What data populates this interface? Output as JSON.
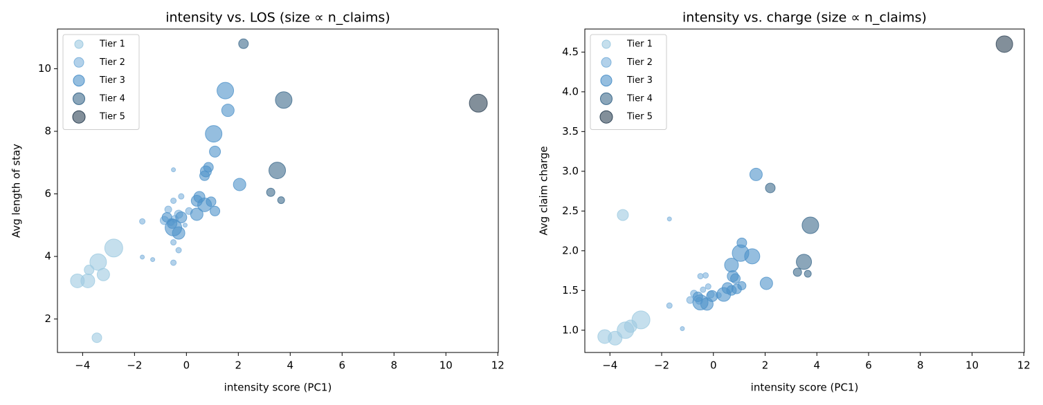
{
  "chart_data": [
    {
      "type": "scatter",
      "title": "intensity vs. LOS (size ∝ n_claims)",
      "xlabel": "intensity score (PC1)",
      "ylabel": "Avg length of stay",
      "legend": "upper left",
      "xlim": [
        -4.97,
        12.02
      ],
      "ylim": [
        0.93,
        11.27
      ],
      "xticks": [
        {
          "value": -4,
          "label": "−4"
        },
        {
          "value": -2,
          "label": "−2"
        },
        0,
        2,
        4,
        6,
        8,
        10,
        12
      ],
      "yticks": [
        2,
        4,
        6,
        8,
        10
      ],
      "series": [
        {
          "name": "Tier 1",
          "color": "#9ecae1",
          "x": [
            -4.2,
            -3.8,
            -3.4,
            -3.2,
            -2.8,
            -3.75,
            -3.45
          ],
          "values": [
            3.22,
            3.22,
            3.82,
            3.42,
            4.27,
            3.57,
            1.4
          ],
          "sizes": [
            10,
            10,
            12,
            9,
            13,
            7,
            7
          ]
        },
        {
          "name": "Tier 2",
          "color": "#7fb3dc",
          "x": [
            -1.7,
            -1.7,
            -1.3,
            -0.5,
            -0.5,
            -0.5,
            -0.3,
            -0.5,
            -0.2,
            -0.05,
            -0.7,
            0.1,
            -0.3,
            -0.85,
            -0.6,
            -0.45
          ],
          "values": [
            5.12,
            3.98,
            3.9,
            6.77,
            3.8,
            4.45,
            4.2,
            5.78,
            5.92,
            5.0,
            5.5,
            5.45,
            5.35,
            5.15,
            5.1,
            5.2
          ],
          "sizes": [
            4,
            3,
            3,
            3,
            4,
            4,
            4,
            4,
            4,
            3,
            5,
            5,
            6,
            6,
            5,
            5
          ]
        },
        {
          "name": "Tier 3",
          "color": "#4f92c9",
          "x": [
            -0.5,
            -0.3,
            -0.2,
            -0.75,
            0.4,
            0.5,
            0.7,
            0.4,
            0.95,
            1.1,
            0.7,
            0.75,
            0.85,
            1.1,
            1.05,
            1.5,
            1.6,
            2.05,
            -0.55
          ],
          "values": [
            4.92,
            4.75,
            5.25,
            5.25,
            5.78,
            5.9,
            5.65,
            5.35,
            5.75,
            5.45,
            6.58,
            6.72,
            6.85,
            7.35,
            7.92,
            9.3,
            8.67,
            6.3,
            5.05
          ],
          "sizes": [
            12,
            9,
            8,
            7,
            8,
            8,
            10,
            9,
            7,
            7,
            7,
            8,
            7,
            8,
            12,
            12,
            9,
            9,
            7
          ]
        },
        {
          "name": "Tier 4",
          "color": "#3d6a8c",
          "x": [
            2.2,
            3.25,
            3.65,
            3.5,
            3.75
          ],
          "values": [
            10.8,
            6.05,
            5.8,
            6.75,
            9.0
          ],
          "sizes": [
            7,
            6,
            5,
            12,
            12
          ]
        },
        {
          "name": "Tier 5",
          "color": "#2f4456",
          "x": [
            11.25
          ],
          "values": [
            8.9
          ],
          "sizes": [
            13
          ]
        }
      ]
    },
    {
      "type": "scatter",
      "title": "intensity vs. charge (size ∝ n_claims)",
      "xlabel": "intensity score (PC1)",
      "ylabel": "Avg claim charge",
      "legend": "upper left",
      "xlim": [
        -4.97,
        12.02
      ],
      "ylim": [
        0.72,
        4.79
      ],
      "xticks": [
        {
          "value": -4,
          "label": "−4"
        },
        {
          "value": -2,
          "label": "−2"
        },
        0,
        2,
        4,
        6,
        8,
        10,
        12
      ],
      "yticks": [
        {
          "value": 1,
          "label": "1.0"
        },
        1.5,
        {
          "value": 2,
          "label": "2.0"
        },
        2.5,
        {
          "value": 3,
          "label": "3.0"
        },
        3.5,
        {
          "value": 4,
          "label": "4.0"
        },
        4.5
      ],
      "series": [
        {
          "name": "Tier 1",
          "color": "#9ecae1",
          "x": [
            -4.2,
            -3.8,
            -3.4,
            -3.2,
            -2.8,
            -3.5
          ],
          "values": [
            0.92,
            0.9,
            1.0,
            1.05,
            1.13,
            2.45
          ],
          "sizes": [
            10,
            10,
            12,
            9,
            13,
            8
          ]
        },
        {
          "name": "Tier 2",
          "color": "#7fb3dc",
          "x": [
            -1.7,
            -1.7,
            -1.2,
            -0.5,
            -0.3,
            -0.4,
            -0.2,
            -0.75,
            -0.55,
            -0.9,
            -0.1,
            0.2
          ],
          "values": [
            2.4,
            1.31,
            1.02,
            1.68,
            1.69,
            1.51,
            1.55,
            1.46,
            1.37,
            1.38,
            1.45,
            1.44
          ],
          "sizes": [
            3,
            4,
            3,
            4,
            4,
            4,
            4,
            5,
            5,
            5,
            5,
            4
          ]
        },
        {
          "name": "Tier 3",
          "color": "#4f92c9",
          "x": [
            -0.5,
            -0.25,
            -0.05,
            0.4,
            0.55,
            0.7,
            0.9,
            1.1,
            0.7,
            0.75,
            0.85,
            1.05,
            1.5,
            1.1,
            2.05,
            1.65,
            -0.6
          ],
          "values": [
            1.35,
            1.33,
            1.43,
            1.45,
            1.53,
            1.5,
            1.52,
            1.56,
            1.82,
            1.68,
            1.65,
            1.97,
            1.93,
            2.1,
            1.59,
            2.96,
            1.42
          ],
          "sizes": [
            11,
            9,
            8,
            10,
            8,
            7,
            7,
            6,
            10,
            8,
            7,
            12,
            11,
            7,
            9,
            9,
            7
          ]
        },
        {
          "name": "Tier 4",
          "color": "#3d6a8c",
          "x": [
            2.2,
            3.25,
            3.65,
            3.5,
            3.75
          ],
          "values": [
            2.79,
            1.73,
            1.71,
            1.86,
            2.32
          ],
          "sizes": [
            7,
            6,
            5,
            11,
            12
          ]
        },
        {
          "name": "Tier 5",
          "color": "#2f4456",
          "x": [
            11.25
          ],
          "values": [
            4.6
          ],
          "sizes": [
            12
          ]
        }
      ]
    }
  ]
}
